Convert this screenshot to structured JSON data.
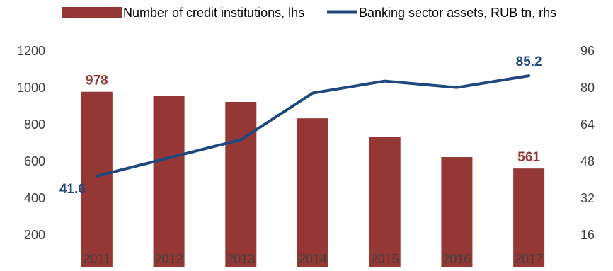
{
  "chart_data": {
    "type": "bar",
    "categories": [
      "2011",
      "2012",
      "2013",
      "2014",
      "2015",
      "2016",
      "2017"
    ],
    "series": [
      {
        "name": "Number of credit institutions, lhs",
        "type": "bar",
        "axis": "left",
        "color": "#953735",
        "values": [
          978,
          956,
          923,
          834,
          733,
          623,
          561
        ]
      },
      {
        "name": "Banking sector assets, RUB tn, rhs",
        "type": "line",
        "axis": "right",
        "color": "#1f497d",
        "values": [
          41.6,
          49.5,
          57.4,
          77.7,
          82.9,
          80.1,
          85.2
        ]
      }
    ],
    "data_labels": [
      {
        "series": 0,
        "index": 0,
        "text": "978"
      },
      {
        "series": 0,
        "index": 6,
        "text": "561"
      },
      {
        "series": 1,
        "index": 0,
        "text": "41.6"
      },
      {
        "series": 1,
        "index": 6,
        "text": "85.2"
      }
    ],
    "y_left": {
      "range": [
        0,
        1200
      ],
      "ticks": [
        "0",
        "200",
        "400",
        "600",
        "800",
        "1000",
        "1200"
      ]
    },
    "y_right": {
      "range": [
        0,
        96
      ],
      "ticks": [
        "-",
        "16",
        "32",
        "48",
        "64",
        "80",
        "96"
      ]
    },
    "legend_position": "top",
    "grid": false
  }
}
